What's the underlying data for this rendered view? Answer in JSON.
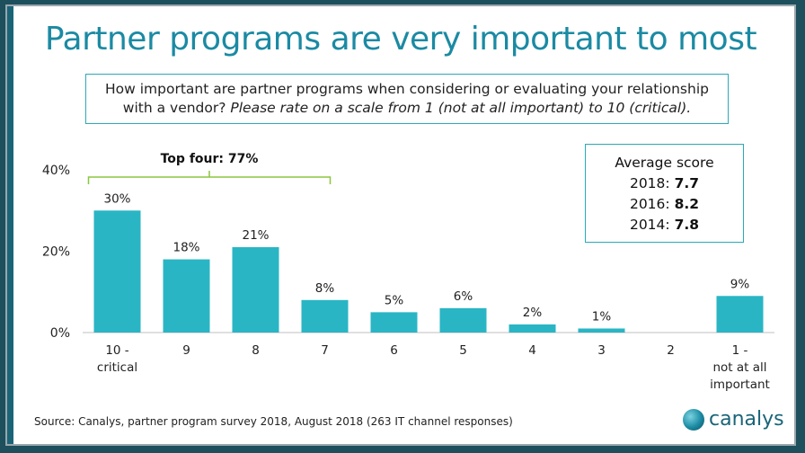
{
  "title": "Partner programs are very important to most",
  "question": {
    "line1": "How important are partner programs when considering or evaluating your relationship",
    "line2_plain": "with a vendor? ",
    "line2_italic": "Please rate on a scale from 1 (not at all important) to 10 (critical)."
  },
  "average_box": {
    "heading": "Average score",
    "rows": [
      {
        "year": "2018:",
        "score": "7.7"
      },
      {
        "year": "2016:",
        "score": "8.2"
      },
      {
        "year": "2014:",
        "score": "7.8"
      }
    ]
  },
  "source": "Source: Canalys, partner program survey 2018, August 2018 (263 IT channel responses)",
  "logo_text": "canalys",
  "colors": {
    "bar": "#2ab5c4",
    "title": "#1b8aa3",
    "bracket": "#8cc63f",
    "frame": "#1d4f5d"
  },
  "chart_data": {
    "type": "bar",
    "categories": [
      "10 - critical",
      "9",
      "8",
      "7",
      "6",
      "5",
      "4",
      "3",
      "2",
      "1 - not at all important"
    ],
    "category_lines": [
      [
        "10 -",
        "critical"
      ],
      [
        "9"
      ],
      [
        "8"
      ],
      [
        "7"
      ],
      [
        "6"
      ],
      [
        "5"
      ],
      [
        "4"
      ],
      [
        "3"
      ],
      [
        "2"
      ],
      [
        "1 -",
        "not at all",
        "important"
      ]
    ],
    "values": [
      30,
      18,
      21,
      8,
      5,
      6,
      2,
      1,
      0,
      9
    ],
    "data_labels": [
      "30%",
      "18%",
      "21%",
      "8%",
      "5%",
      "6%",
      "2%",
      "1%",
      "",
      "9%"
    ],
    "ylim": [
      0,
      40
    ],
    "yticks": [
      0,
      20,
      40
    ],
    "ytick_labels": [
      "0%",
      "20%",
      "40%"
    ],
    "grid": false,
    "annotation": {
      "text": "Top four: 77%",
      "from_category": 0,
      "to_category": 3
    }
  }
}
